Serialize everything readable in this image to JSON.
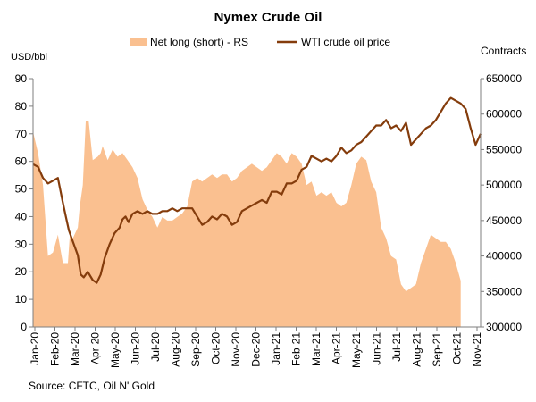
{
  "chart_data": {
    "type": "area+line",
    "title": "Nymex Crude Oil",
    "left_axis_unit": "USD/bbl",
    "right_axis_unit": "Contracts",
    "source": "Source: CFTC, Oil N' Gold",
    "legend_position": "top",
    "grid": false,
    "left_ylim": [
      0,
      90
    ],
    "left_yticks": [
      0,
      10,
      20,
      30,
      40,
      50,
      60,
      70,
      80,
      90
    ],
    "right_ylim": [
      300000,
      650000
    ],
    "right_yticks": [
      300000,
      350000,
      400000,
      450000,
      500000,
      550000,
      600000,
      650000
    ],
    "right_ytick_labels": [
      "300000",
      "350000",
      "400000",
      "450000",
      "500000",
      "550000",
      "600000",
      "650000"
    ],
    "x_tick_labels": [
      "Jan-20",
      "Feb-20",
      "Mar-20",
      "Apr-20",
      "May-20",
      "Jun-20",
      "Jul-20",
      "Aug-20",
      "Sep-20",
      "Oct-20",
      "Nov-20",
      "Dec-20",
      "Jan-21",
      "Feb-21",
      "Mar-21",
      "Apr-21",
      "May-21",
      "Jun-21",
      "Jul-21",
      "Aug-21",
      "Sep-21",
      "Oct-21",
      "Nov-21"
    ],
    "series": [
      {
        "name": "Net long (short) - RS",
        "kind": "area",
        "axis": "right",
        "color": "#fac090",
        "values": [
          [
            0,
            575000
          ],
          [
            0.5,
            545000
          ],
          [
            1,
            500000
          ],
          [
            1.5,
            400000
          ],
          [
            2,
            405000
          ],
          [
            2.5,
            430000
          ],
          [
            3,
            390000
          ],
          [
            3.5,
            390000
          ],
          [
            3.7,
            430000
          ],
          [
            4,
            425000
          ],
          [
            4.5,
            440000
          ],
          [
            4.7,
            470000
          ],
          [
            5,
            500000
          ],
          [
            5.3,
            590000
          ],
          [
            5.6,
            590000
          ],
          [
            6,
            535000
          ],
          [
            6.5,
            540000
          ],
          [
            6.8,
            545000
          ],
          [
            7,
            555000
          ],
          [
            7.5,
            535000
          ],
          [
            8,
            550000
          ],
          [
            8.5,
            540000
          ],
          [
            9,
            545000
          ],
          [
            9.5,
            535000
          ],
          [
            10,
            525000
          ],
          [
            10.5,
            510000
          ],
          [
            11,
            480000
          ],
          [
            11.5,
            465000
          ],
          [
            12,
            455000
          ],
          [
            12.5,
            440000
          ],
          [
            13,
            455000
          ],
          [
            13.5,
            450000
          ],
          [
            14,
            450000
          ],
          [
            14.5,
            455000
          ],
          [
            15,
            460000
          ],
          [
            15.5,
            470000
          ],
          [
            16,
            505000
          ],
          [
            16.5,
            510000
          ],
          [
            17,
            505000
          ],
          [
            17.5,
            510000
          ],
          [
            18,
            515000
          ],
          [
            18.5,
            510000
          ],
          [
            19,
            515000
          ],
          [
            19.5,
            515000
          ],
          [
            20,
            505000
          ],
          [
            20.5,
            510000
          ],
          [
            21,
            520000
          ],
          [
            21.5,
            525000
          ],
          [
            22,
            530000
          ],
          [
            22.5,
            525000
          ],
          [
            23,
            520000
          ],
          [
            23.5,
            525000
          ],
          [
            24,
            535000
          ],
          [
            24.5,
            545000
          ],
          [
            25,
            540000
          ],
          [
            25.5,
            530000
          ],
          [
            26,
            545000
          ],
          [
            26.5,
            540000
          ],
          [
            27,
            530000
          ],
          [
            27.5,
            500000
          ],
          [
            28,
            505000
          ],
          [
            28.5,
            485000
          ],
          [
            29,
            490000
          ],
          [
            29.5,
            485000
          ],
          [
            30,
            490000
          ],
          [
            30.5,
            475000
          ],
          [
            31,
            470000
          ],
          [
            31.5,
            475000
          ],
          [
            32,
            500000
          ],
          [
            32.5,
            530000
          ],
          [
            33,
            540000
          ],
          [
            33.5,
            535000
          ],
          [
            34,
            505000
          ],
          [
            34.5,
            490000
          ],
          [
            35,
            440000
          ],
          [
            35.5,
            425000
          ],
          [
            36,
            400000
          ],
          [
            36.5,
            395000
          ],
          [
            37,
            360000
          ],
          [
            37.5,
            350000
          ],
          [
            38,
            355000
          ],
          [
            38.5,
            360000
          ],
          [
            39,
            390000
          ],
          [
            39.5,
            410000
          ],
          [
            40,
            430000
          ],
          [
            40.5,
            425000
          ],
          [
            41,
            420000
          ],
          [
            41.5,
            420000
          ],
          [
            42,
            410000
          ],
          [
            42.5,
            390000
          ],
          [
            43,
            365000
          ]
        ]
      },
      {
        "name": "WTI crude oil price",
        "kind": "line",
        "axis": "left",
        "color": "#843c0c",
        "values": [
          [
            0,
            59
          ],
          [
            0.5,
            58
          ],
          [
            1,
            54
          ],
          [
            1.5,
            52
          ],
          [
            2,
            53
          ],
          [
            2.5,
            54
          ],
          [
            3,
            45
          ],
          [
            3.3,
            40
          ],
          [
            3.6,
            35
          ],
          [
            4,
            31
          ],
          [
            4.5,
            26
          ],
          [
            4.8,
            19
          ],
          [
            5.1,
            18
          ],
          [
            5.5,
            20
          ],
          [
            6,
            17
          ],
          [
            6.4,
            16
          ],
          [
            6.8,
            19
          ],
          [
            7.2,
            25
          ],
          [
            7.7,
            30
          ],
          [
            8.2,
            34
          ],
          [
            8.7,
            36
          ],
          [
            9,
            39
          ],
          [
            9.3,
            40
          ],
          [
            9.6,
            38
          ],
          [
            10,
            41
          ],
          [
            10.5,
            42
          ],
          [
            11,
            41
          ],
          [
            11.5,
            42
          ],
          [
            12,
            41
          ],
          [
            12.5,
            41
          ],
          [
            13,
            42
          ],
          [
            13.5,
            42
          ],
          [
            14,
            43
          ],
          [
            14.5,
            42
          ],
          [
            15,
            43
          ],
          [
            15.5,
            43
          ],
          [
            16,
            43
          ],
          [
            16.5,
            40
          ],
          [
            17,
            37
          ],
          [
            17.5,
            38
          ],
          [
            18,
            40
          ],
          [
            18.5,
            39
          ],
          [
            19,
            41
          ],
          [
            19.5,
            40
          ],
          [
            20,
            37
          ],
          [
            20.5,
            38
          ],
          [
            21,
            42
          ],
          [
            21.5,
            43
          ],
          [
            22,
            44
          ],
          [
            22.5,
            45
          ],
          [
            23,
            46
          ],
          [
            23.5,
            45
          ],
          [
            24,
            49
          ],
          [
            24.5,
            49
          ],
          [
            25,
            48
          ],
          [
            25.5,
            52
          ],
          [
            26,
            52
          ],
          [
            26.5,
            53
          ],
          [
            27,
            57
          ],
          [
            27.5,
            58
          ],
          [
            28,
            62
          ],
          [
            28.5,
            61
          ],
          [
            29,
            60
          ],
          [
            29.5,
            61
          ],
          [
            30,
            60
          ],
          [
            30.5,
            62
          ],
          [
            31,
            65
          ],
          [
            31.5,
            63
          ],
          [
            32,
            64
          ],
          [
            32.5,
            66
          ],
          [
            33,
            67
          ],
          [
            33.5,
            69
          ],
          [
            34,
            71
          ],
          [
            34.5,
            73
          ],
          [
            35,
            73
          ],
          [
            35.5,
            75
          ],
          [
            36,
            72
          ],
          [
            36.5,
            73
          ],
          [
            37,
            71
          ],
          [
            37.5,
            74
          ],
          [
            38,
            66
          ],
          [
            38.5,
            68
          ],
          [
            39,
            70
          ],
          [
            39.5,
            72
          ],
          [
            40,
            73
          ],
          [
            40.5,
            75
          ],
          [
            41,
            78
          ],
          [
            41.5,
            81
          ],
          [
            42,
            83
          ],
          [
            42.5,
            82
          ],
          [
            43,
            81
          ],
          [
            43.5,
            79
          ],
          [
            44,
            72
          ],
          [
            44.5,
            66
          ],
          [
            45,
            70
          ]
        ]
      }
    ]
  }
}
